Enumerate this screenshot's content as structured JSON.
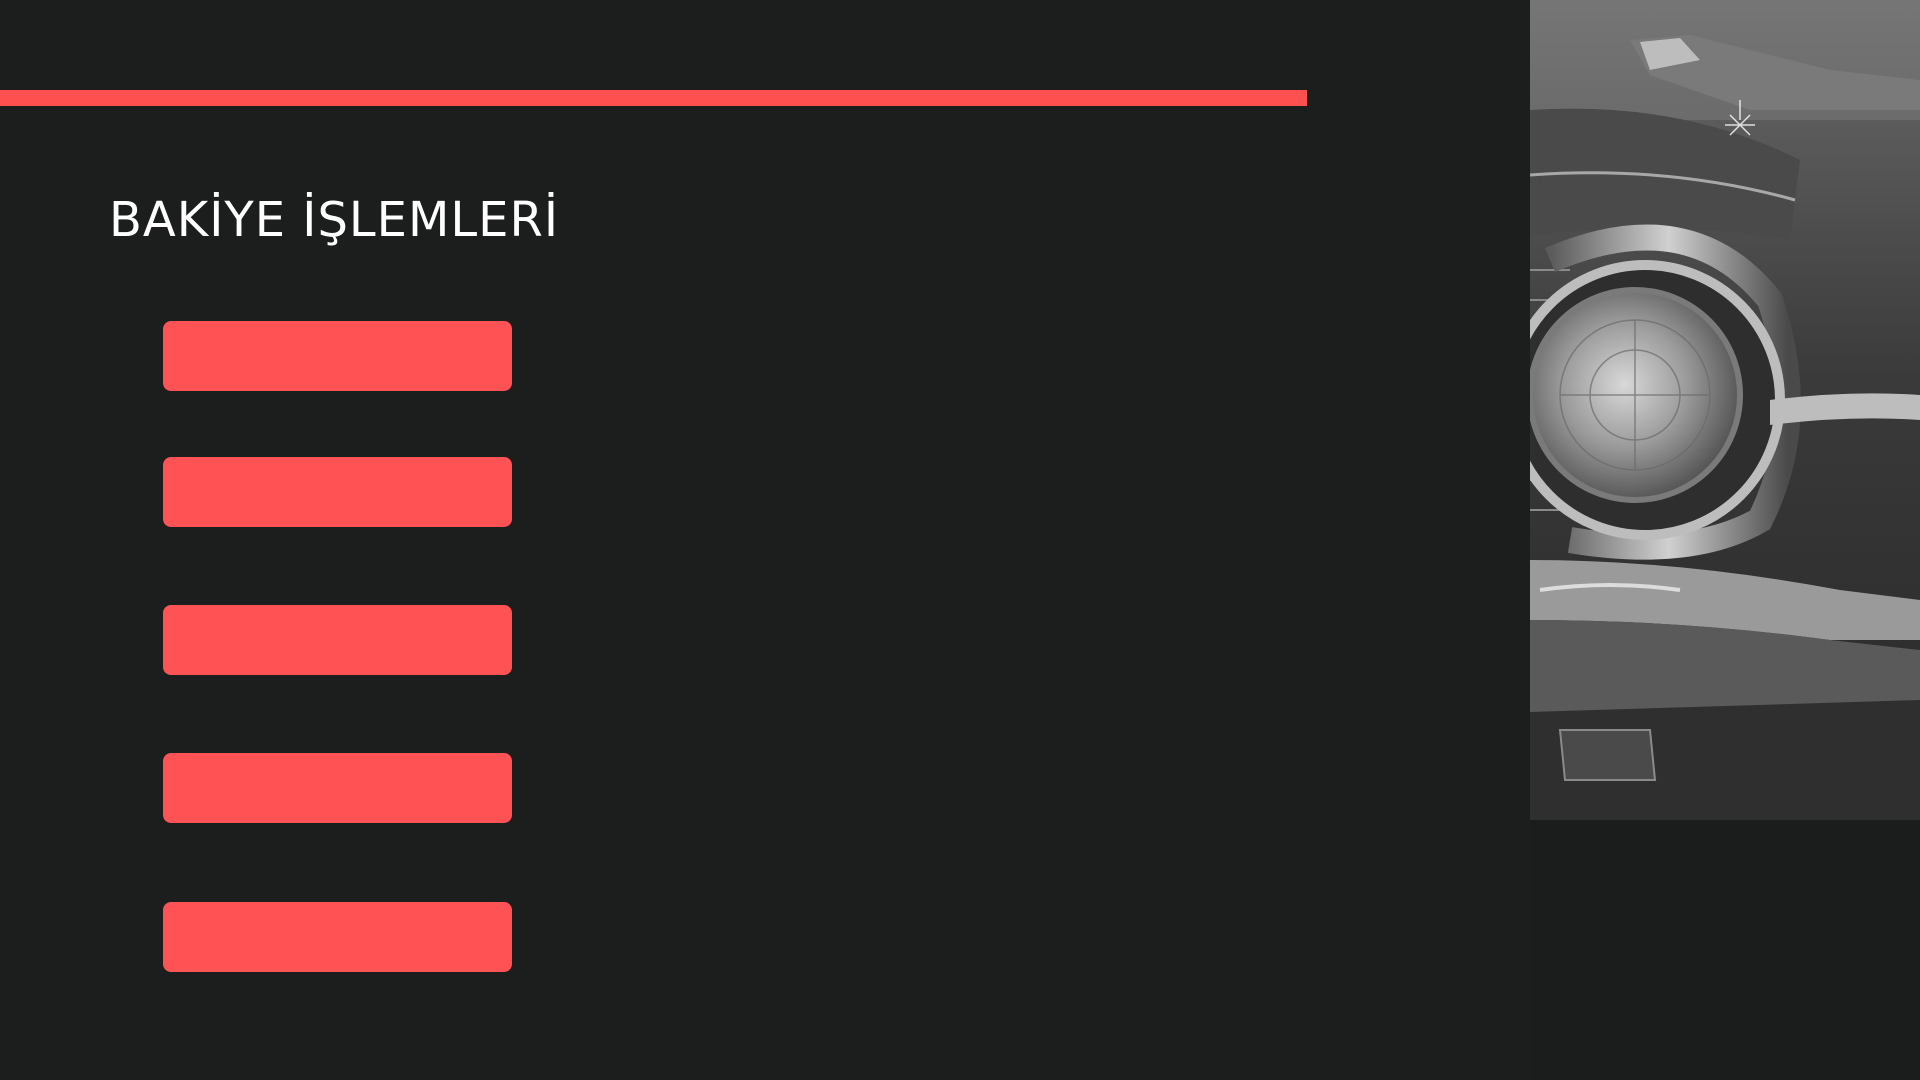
{
  "title": "BAKİYE İŞLEMLERİ",
  "accent_color": "#ff5050",
  "background_color": "#1c1e1e",
  "menu_buttons": [
    {
      "label": ""
    },
    {
      "label": ""
    },
    {
      "label": ""
    },
    {
      "label": ""
    },
    {
      "label": ""
    }
  ],
  "side_image": {
    "subject": "classic-car-headlight-photo"
  }
}
